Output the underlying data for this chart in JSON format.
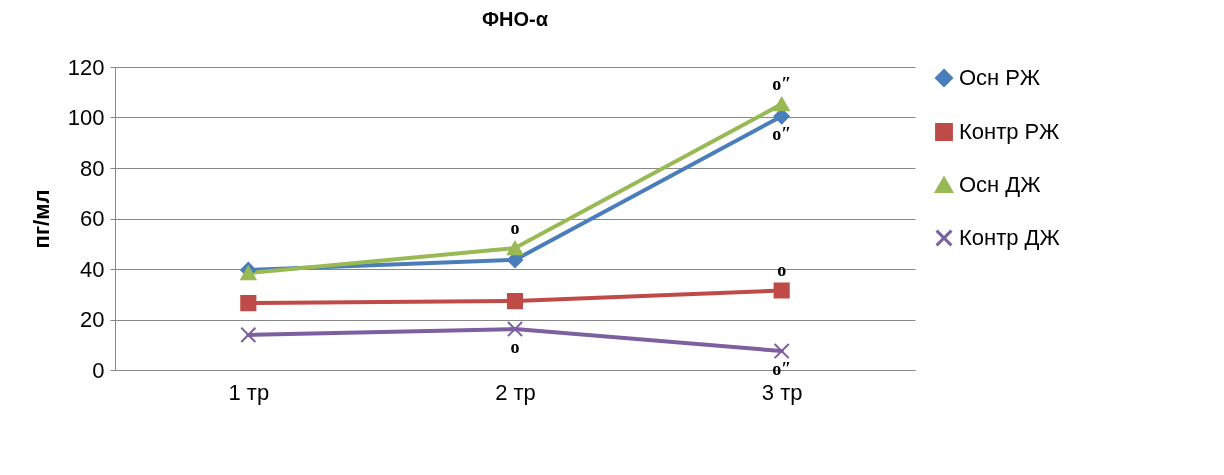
{
  "chart_data": {
    "type": "line",
    "title": "ФНО-α",
    "ylabel": "пг/мл",
    "categories": [
      "1 тр",
      "2 тр",
      "3 тр"
    ],
    "series": [
      {
        "name": "Осн РЖ",
        "color": "#4a7ebb",
        "marker": "diamond",
        "values": [
          39.6,
          43.6,
          100.5
        ]
      },
      {
        "name": "Контр РЖ",
        "color": "#be4b48",
        "marker": "square",
        "values": [
          26.5,
          27.3,
          31.5
        ]
      },
      {
        "name": "Осн ДЖ",
        "color": "#98b954",
        "marker": "triangle",
        "values": [
          38.4,
          48.3,
          105.3
        ]
      },
      {
        "name": "Контр ДЖ",
        "color": "#7d60a0",
        "marker": "cross",
        "values": [
          13.9,
          16.2,
          7.5
        ]
      }
    ],
    "ylim": [
      0,
      120
    ],
    "yticks": [
      0,
      20,
      40,
      60,
      80,
      100,
      120
    ],
    "grid": "y",
    "legend": "right",
    "annotations": [
      {
        "text": "о″",
        "x": "3 тр",
        "y": 105.3
      },
      {
        "text": "о″",
        "x": "3 тр",
        "y": 100.5
      },
      {
        "text": "о",
        "x": "2 тр",
        "y": 48.3
      },
      {
        "text": "о",
        "x": "3 тр",
        "y": 31.5
      },
      {
        "text": "о",
        "x": "2 тр",
        "y": 16.2
      },
      {
        "text": "о″",
        "x": "3 тр",
        "y": 7.5
      }
    ]
  }
}
